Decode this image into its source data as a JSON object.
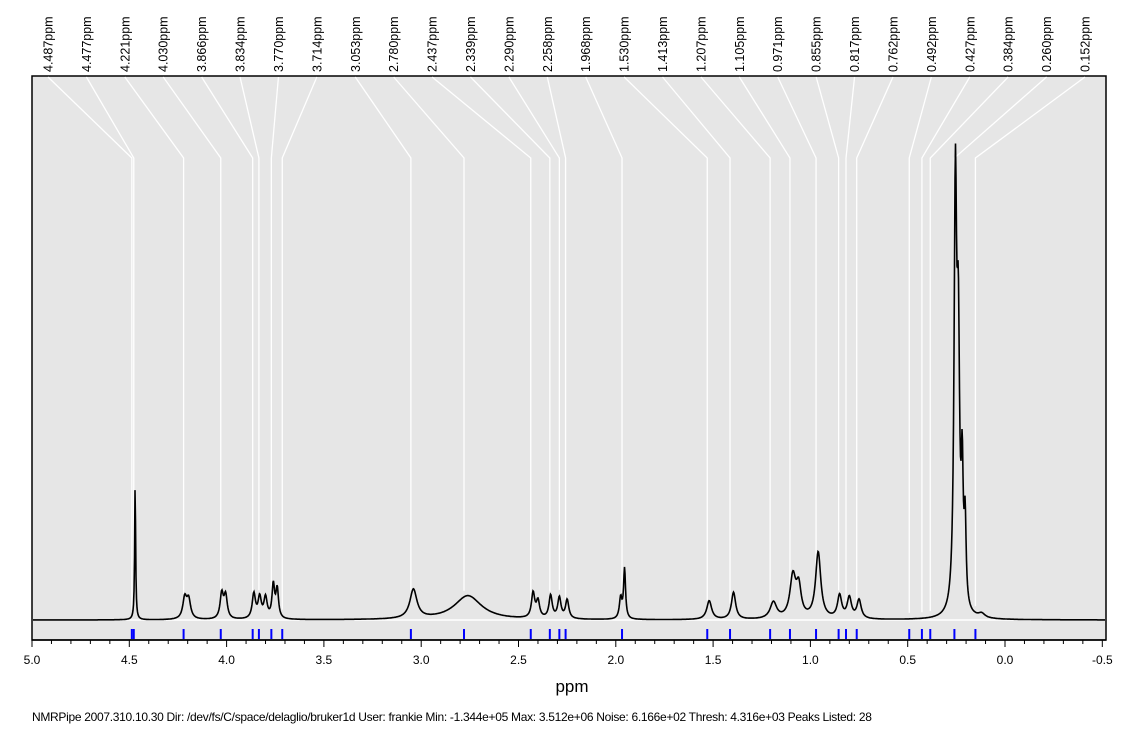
{
  "chart_data": {
    "type": "line",
    "title": "",
    "xlabel": "ppm",
    "ylabel": "",
    "xlim": [
      5.0,
      -0.53
    ],
    "x_ticks": [
      "5.0",
      "4.5",
      "4.0",
      "3.5",
      "3.0",
      "2.5",
      "2.0",
      "1.5",
      "1.0",
      "0.5",
      "0.0",
      "-0.5"
    ],
    "x_tick_values": [
      5.0,
      4.5,
      4.0,
      3.5,
      3.0,
      2.5,
      2.0,
      1.5,
      1.0,
      0.5,
      0.0,
      -0.5
    ],
    "peaks_listed": [
      4.487,
      4.477,
      4.221,
      4.03,
      3.866,
      3.834,
      3.77,
      3.714,
      3.053,
      2.78,
      2.437,
      2.339,
      2.29,
      2.258,
      1.968,
      1.53,
      1.413,
      1.207,
      1.105,
      0.971,
      0.855,
      0.817,
      0.762,
      0.492,
      0.427,
      0.384,
      0.26,
      0.152
    ],
    "peak_labels": [
      "4.487ppm",
      "4.477ppm",
      "4.221ppm",
      "4.030ppm",
      "3.866ppm",
      "3.834ppm",
      "3.770ppm",
      "3.714ppm",
      "3.053ppm",
      "2.780ppm",
      "2.437ppm",
      "2.339ppm",
      "2.290ppm",
      "2.258ppm",
      "1.968ppm",
      "1.530ppm",
      "1.413ppm",
      "1.207ppm",
      "1.105ppm",
      "0.971ppm",
      "0.855ppm",
      "0.817ppm",
      "0.762ppm",
      "0.492ppm",
      "0.427ppm",
      "0.384ppm",
      "0.260ppm",
      "0.152ppm"
    ],
    "spectrum_components": [
      {
        "ppm": 4.47,
        "intensity": 0.33,
        "width": 0.003
      },
      {
        "ppm": 4.215,
        "intensity": 0.05,
        "width": 0.012
      },
      {
        "ppm": 4.195,
        "intensity": 0.045,
        "width": 0.012
      },
      {
        "ppm": 4.025,
        "intensity": 0.06,
        "width": 0.01
      },
      {
        "ppm": 4.005,
        "intensity": 0.055,
        "width": 0.01
      },
      {
        "ppm": 3.86,
        "intensity": 0.06,
        "width": 0.01
      },
      {
        "ppm": 3.83,
        "intensity": 0.05,
        "width": 0.01
      },
      {
        "ppm": 3.8,
        "intensity": 0.05,
        "width": 0.01
      },
      {
        "ppm": 3.76,
        "intensity": 0.08,
        "width": 0.008
      },
      {
        "ppm": 3.74,
        "intensity": 0.07,
        "width": 0.008
      },
      {
        "ppm": 3.04,
        "intensity": 0.07,
        "width": 0.022
      },
      {
        "ppm": 2.76,
        "intensity": 0.058,
        "width": 0.085
      },
      {
        "ppm": 2.425,
        "intensity": 0.06,
        "width": 0.01
      },
      {
        "ppm": 2.4,
        "intensity": 0.04,
        "width": 0.01
      },
      {
        "ppm": 2.335,
        "intensity": 0.055,
        "width": 0.01
      },
      {
        "ppm": 2.29,
        "intensity": 0.05,
        "width": 0.01
      },
      {
        "ppm": 2.25,
        "intensity": 0.045,
        "width": 0.01
      },
      {
        "ppm": 1.955,
        "intensity": 0.12,
        "width": 0.006
      },
      {
        "ppm": 1.975,
        "intensity": 0.05,
        "width": 0.008
      },
      {
        "ppm": 1.52,
        "intensity": 0.045,
        "width": 0.015
      },
      {
        "ppm": 1.395,
        "intensity": 0.065,
        "width": 0.013
      },
      {
        "ppm": 1.19,
        "intensity": 0.04,
        "width": 0.02
      },
      {
        "ppm": 1.09,
        "intensity": 0.1,
        "width": 0.018
      },
      {
        "ppm": 1.06,
        "intensity": 0.07,
        "width": 0.015
      },
      {
        "ppm": 0.96,
        "intensity": 0.16,
        "width": 0.016
      },
      {
        "ppm": 0.85,
        "intensity": 0.055,
        "width": 0.013
      },
      {
        "ppm": 0.8,
        "intensity": 0.05,
        "width": 0.013
      },
      {
        "ppm": 0.75,
        "intensity": 0.045,
        "width": 0.013
      },
      {
        "ppm": 0.255,
        "intensity": 1.0,
        "width": 0.008
      },
      {
        "ppm": 0.24,
        "intensity": 0.6,
        "width": 0.008
      },
      {
        "ppm": 0.22,
        "intensity": 0.3,
        "width": 0.006
      },
      {
        "ppm": 0.205,
        "intensity": 0.2,
        "width": 0.006
      },
      {
        "ppm": 0.12,
        "intensity": 0.01,
        "width": 0.02
      }
    ],
    "grid": false,
    "legend": "none"
  },
  "footer": "NMRPipe 2007.310.10.30 Dir: /dev/fs/C/space/delaglio/bruker1d User: frankie Min: -1.344e+05 Max: 3.512e+06 Noise: 6.166e+02 Thresh: 4.316e+03 Peaks Listed: 28",
  "colors": {
    "background": "#e6e6e6",
    "trace": "#000000",
    "peak_tick": "#0000ff",
    "connector": "#ffffff"
  }
}
